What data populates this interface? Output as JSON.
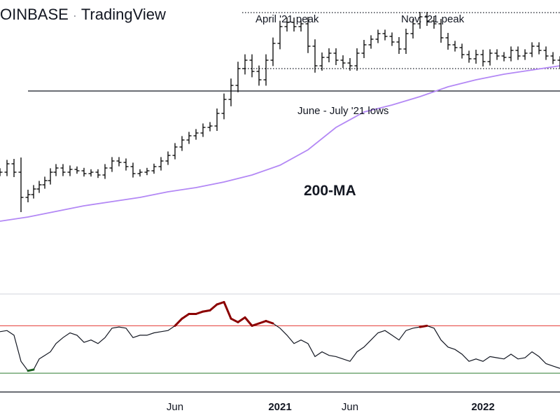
{
  "header": {
    "exchange": "OINBASE",
    "separator": "·",
    "brand": "TradingView"
  },
  "annotations": {
    "april_peak": "April '21 peak",
    "nov_peak": "Nov. '21 peak",
    "lows": "June - July '21 lows",
    "ma": "200-MA"
  },
  "colors": {
    "candle": "#000000",
    "ma": "#b388f5",
    "rsi_line": "#131722",
    "overbought_line": "#e53935",
    "oversold_line": "#2e7d32",
    "overbought_highlight": "#8b0000",
    "oversold_highlight": "#1b5e20"
  },
  "chart_data": [
    {
      "type": "line",
      "title": "",
      "x_ticks": [
        {
          "label": "Jun",
          "bold": false,
          "x": 18.5
        },
        {
          "label": "2021",
          "bold": true,
          "x": 26
        },
        {
          "label": "Jun",
          "bold": false,
          "x": 31
        },
        {
          "label": "2022",
          "bold": true,
          "x": 40.5
        }
      ],
      "xlim": [
        6,
        46
      ],
      "series": [
        {
          "kind": "ohlc",
          "x": [
            6,
            6.5,
            7,
            7.5,
            8,
            8.4,
            8.8,
            9.2,
            9.6,
            10,
            10.5,
            11,
            11.5,
            12,
            12.5,
            13,
            13.5,
            14,
            14.5,
            15,
            15.5,
            16,
            16.5,
            17,
            17.5,
            18,
            18.5,
            19,
            19.5,
            20,
            20.5,
            21,
            21.5,
            22,
            22.5,
            23,
            23.5,
            24,
            24.5,
            25,
            25.5,
            26,
            26.5,
            27,
            27.5,
            28,
            28.5,
            29,
            29.5,
            30,
            30.5,
            31,
            31.5,
            32,
            32.5,
            33,
            33.5,
            34,
            34.5,
            35,
            35.5,
            36,
            36.5,
            37,
            37.5,
            38,
            38.5,
            39,
            39.5,
            40,
            40.5,
            41,
            41.5,
            42,
            42.5,
            43,
            43.5,
            44,
            44.5,
            45,
            45.5,
            46
          ],
          "close": [
            52,
            58,
            52,
            34,
            36,
            40,
            43,
            46,
            52,
            55,
            52,
            54,
            53,
            51,
            52,
            50,
            55,
            60,
            59,
            56,
            51,
            52,
            53,
            56,
            60,
            64,
            70,
            75,
            78,
            80,
            84,
            85,
            94,
            104,
            114,
            126,
            132,
            124,
            118,
            132,
            144,
            156,
            159,
            156,
            158,
            142,
            128,
            134,
            137,
            132,
            130,
            128,
            137,
            143,
            147,
            151,
            149,
            145,
            140,
            151,
            158,
            163,
            160,
            158,
            148,
            143,
            141,
            136,
            133,
            136,
            131,
            137,
            135,
            134,
            139,
            135,
            137,
            142,
            139,
            135,
            132,
            129
          ],
          "range": [
            8,
            8,
            10,
            30,
            10,
            8,
            8,
            8,
            8,
            8,
            8,
            8,
            6,
            6,
            6,
            6,
            8,
            8,
            8,
            8,
            8,
            6,
            6,
            6,
            8,
            8,
            8,
            8,
            8,
            8,
            8,
            8,
            10,
            12,
            14,
            14,
            12,
            12,
            12,
            12,
            12,
            12,
            10,
            10,
            10,
            14,
            14,
            10,
            10,
            10,
            10,
            10,
            10,
            10,
            8,
            8,
            8,
            8,
            10,
            10,
            10,
            10,
            10,
            10,
            10,
            10,
            8,
            8,
            8,
            10,
            10,
            8,
            8,
            8,
            8,
            8,
            8,
            8,
            8,
            8,
            8,
            8
          ]
        },
        {
          "name": "200-MA",
          "x": [
            6,
            8,
            10,
            12,
            14,
            16,
            18,
            20,
            22,
            24,
            26,
            28,
            30,
            32,
            34,
            36,
            38,
            40,
            42,
            44,
            46
          ],
          "values": [
            17,
            20,
            24,
            28,
            31,
            34,
            38,
            41,
            45,
            50,
            57,
            68,
            84,
            95,
            100,
            106,
            113,
            118,
            122,
            125,
            128
          ]
        },
        {
          "kind": "level",
          "label_ref": "April '21 peak",
          "x": [
            23.3,
            46
          ],
          "value": 166
        },
        {
          "kind": "level",
          "label_ref": "June - July '21 lows",
          "x": [
            23.3,
            46
          ],
          "value": 126
        },
        {
          "kind": "level",
          "x": [
            8,
            46
          ],
          "value": 110
        }
      ]
    },
    {
      "type": "line",
      "title": "",
      "xlim": [
        6,
        46
      ],
      "ylim": [
        20,
        85
      ],
      "overbought": 70,
      "oversold": 30,
      "series": [
        {
          "kind": "rsi",
          "x": [
            6,
            6.5,
            7,
            7.5,
            8,
            8.4,
            8.8,
            9.2,
            9.6,
            10,
            10.5,
            11,
            11.5,
            12,
            12.5,
            13,
            13.5,
            14,
            14.5,
            15,
            15.5,
            16,
            16.5,
            17,
            17.5,
            18,
            18.5,
            19,
            19.5,
            20,
            20.5,
            21,
            21.5,
            22,
            22.5,
            23,
            23.5,
            24,
            24.5,
            25,
            25.5,
            26,
            26.5,
            27,
            27.5,
            28,
            28.5,
            29,
            29.5,
            30,
            30.5,
            31,
            31.5,
            32,
            32.5,
            33,
            33.5,
            34,
            34.5,
            35,
            35.5,
            36,
            36.5,
            37,
            37.5,
            38,
            38.5,
            39,
            39.5,
            40,
            40.5,
            41,
            41.5,
            42,
            42.5,
            43,
            43.5,
            44,
            44.5,
            45,
            45.5,
            46
          ],
          "values": [
            65,
            66,
            62,
            40,
            32,
            33,
            42,
            45,
            48,
            55,
            60,
            64,
            62,
            56,
            58,
            55,
            60,
            68,
            69,
            68,
            60,
            62,
            62,
            64,
            65,
            66,
            70,
            76,
            80,
            80,
            82,
            83,
            88,
            90,
            76,
            73,
            77,
            70,
            72,
            74,
            72,
            68,
            62,
            55,
            58,
            55,
            44,
            48,
            45,
            44,
            42,
            40,
            48,
            52,
            58,
            64,
            66,
            62,
            58,
            66,
            68,
            69,
            70,
            68,
            58,
            52,
            50,
            46,
            40,
            42,
            40,
            44,
            43,
            42,
            46,
            42,
            43,
            48,
            44,
            38,
            36,
            34
          ]
        }
      ]
    }
  ]
}
